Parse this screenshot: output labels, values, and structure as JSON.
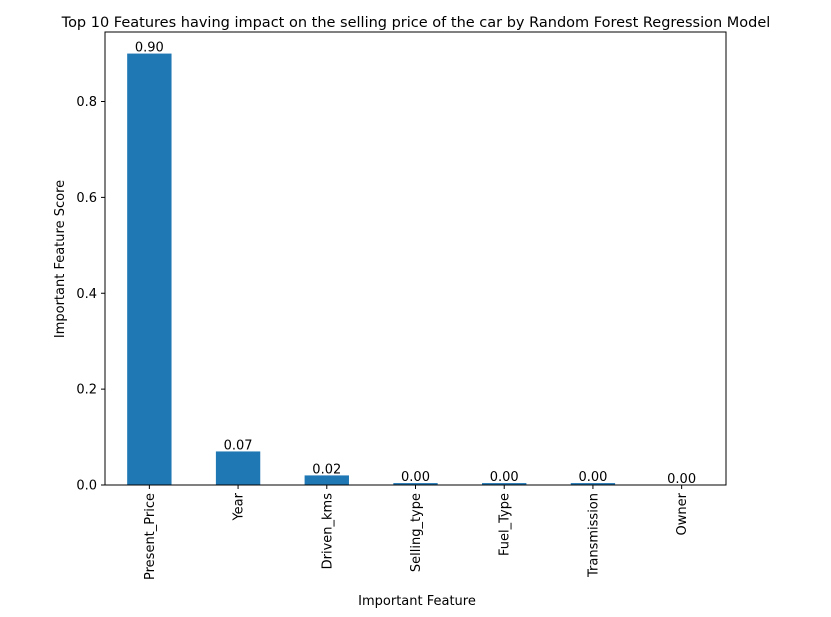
{
  "chart_data": {
    "type": "bar",
    "title": "Top 10 Features having impact on the selling price of the car by Random Forest Regression Model",
    "xlabel": "Important Feature",
    "ylabel": "Important Feature Score",
    "categories": [
      "Present_Price",
      "Year",
      "Driven_kms",
      "Selling_type",
      "Fuel_Type",
      "Transmission",
      "Owner"
    ],
    "values": [
      0.9,
      0.07,
      0.02,
      0.004,
      0.004,
      0.004,
      0.0005
    ],
    "value_labels": [
      "0.90",
      "0.07",
      "0.02",
      "0.00",
      "0.00",
      "0.00",
      "0.00"
    ],
    "ylim": [
      0,
      0.945
    ],
    "yticks": [
      0.0,
      0.2,
      0.4,
      0.6,
      0.8
    ],
    "ytick_labels": [
      "0.0",
      "0.2",
      "0.4",
      "0.6",
      "0.8"
    ],
    "grid": false,
    "bar_color": "#1f77b4"
  }
}
